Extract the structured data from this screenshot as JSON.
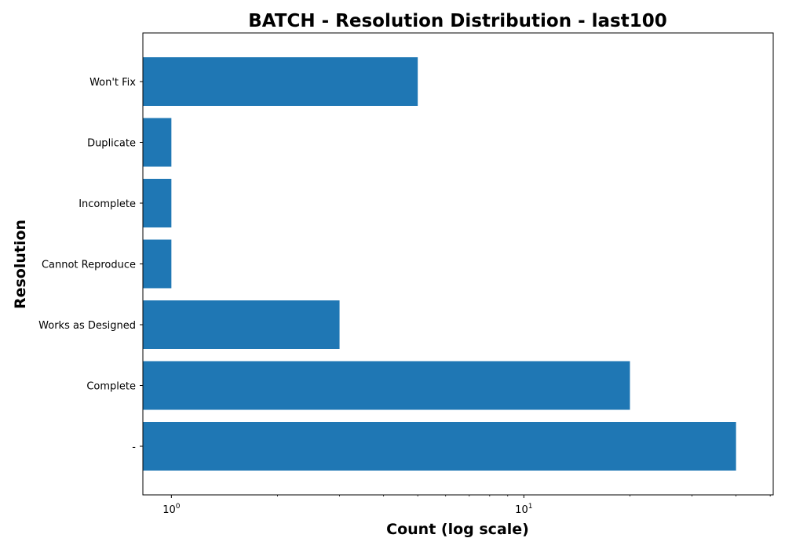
{
  "chart_data": {
    "type": "bar",
    "orientation": "horizontal",
    "title": "BATCH - Resolution Distribution - last100",
    "xlabel": "Count (log scale)",
    "ylabel": "Resolution",
    "x_scale": "log",
    "xlim": [
      0.83,
      51
    ],
    "categories": [
      "-",
      "Complete",
      "Works as Designed",
      "Cannot Reproduce",
      "Incomplete",
      "Duplicate",
      "Won't Fix"
    ],
    "values": [
      40,
      20,
      3,
      1,
      1,
      1,
      5
    ],
    "x_ticks": [
      {
        "value": 1,
        "base": "10",
        "exp": "0"
      },
      {
        "value": 10,
        "base": "10",
        "exp": "1"
      }
    ],
    "bar_color": "#1f77b4",
    "grid": false,
    "legend": "none"
  }
}
